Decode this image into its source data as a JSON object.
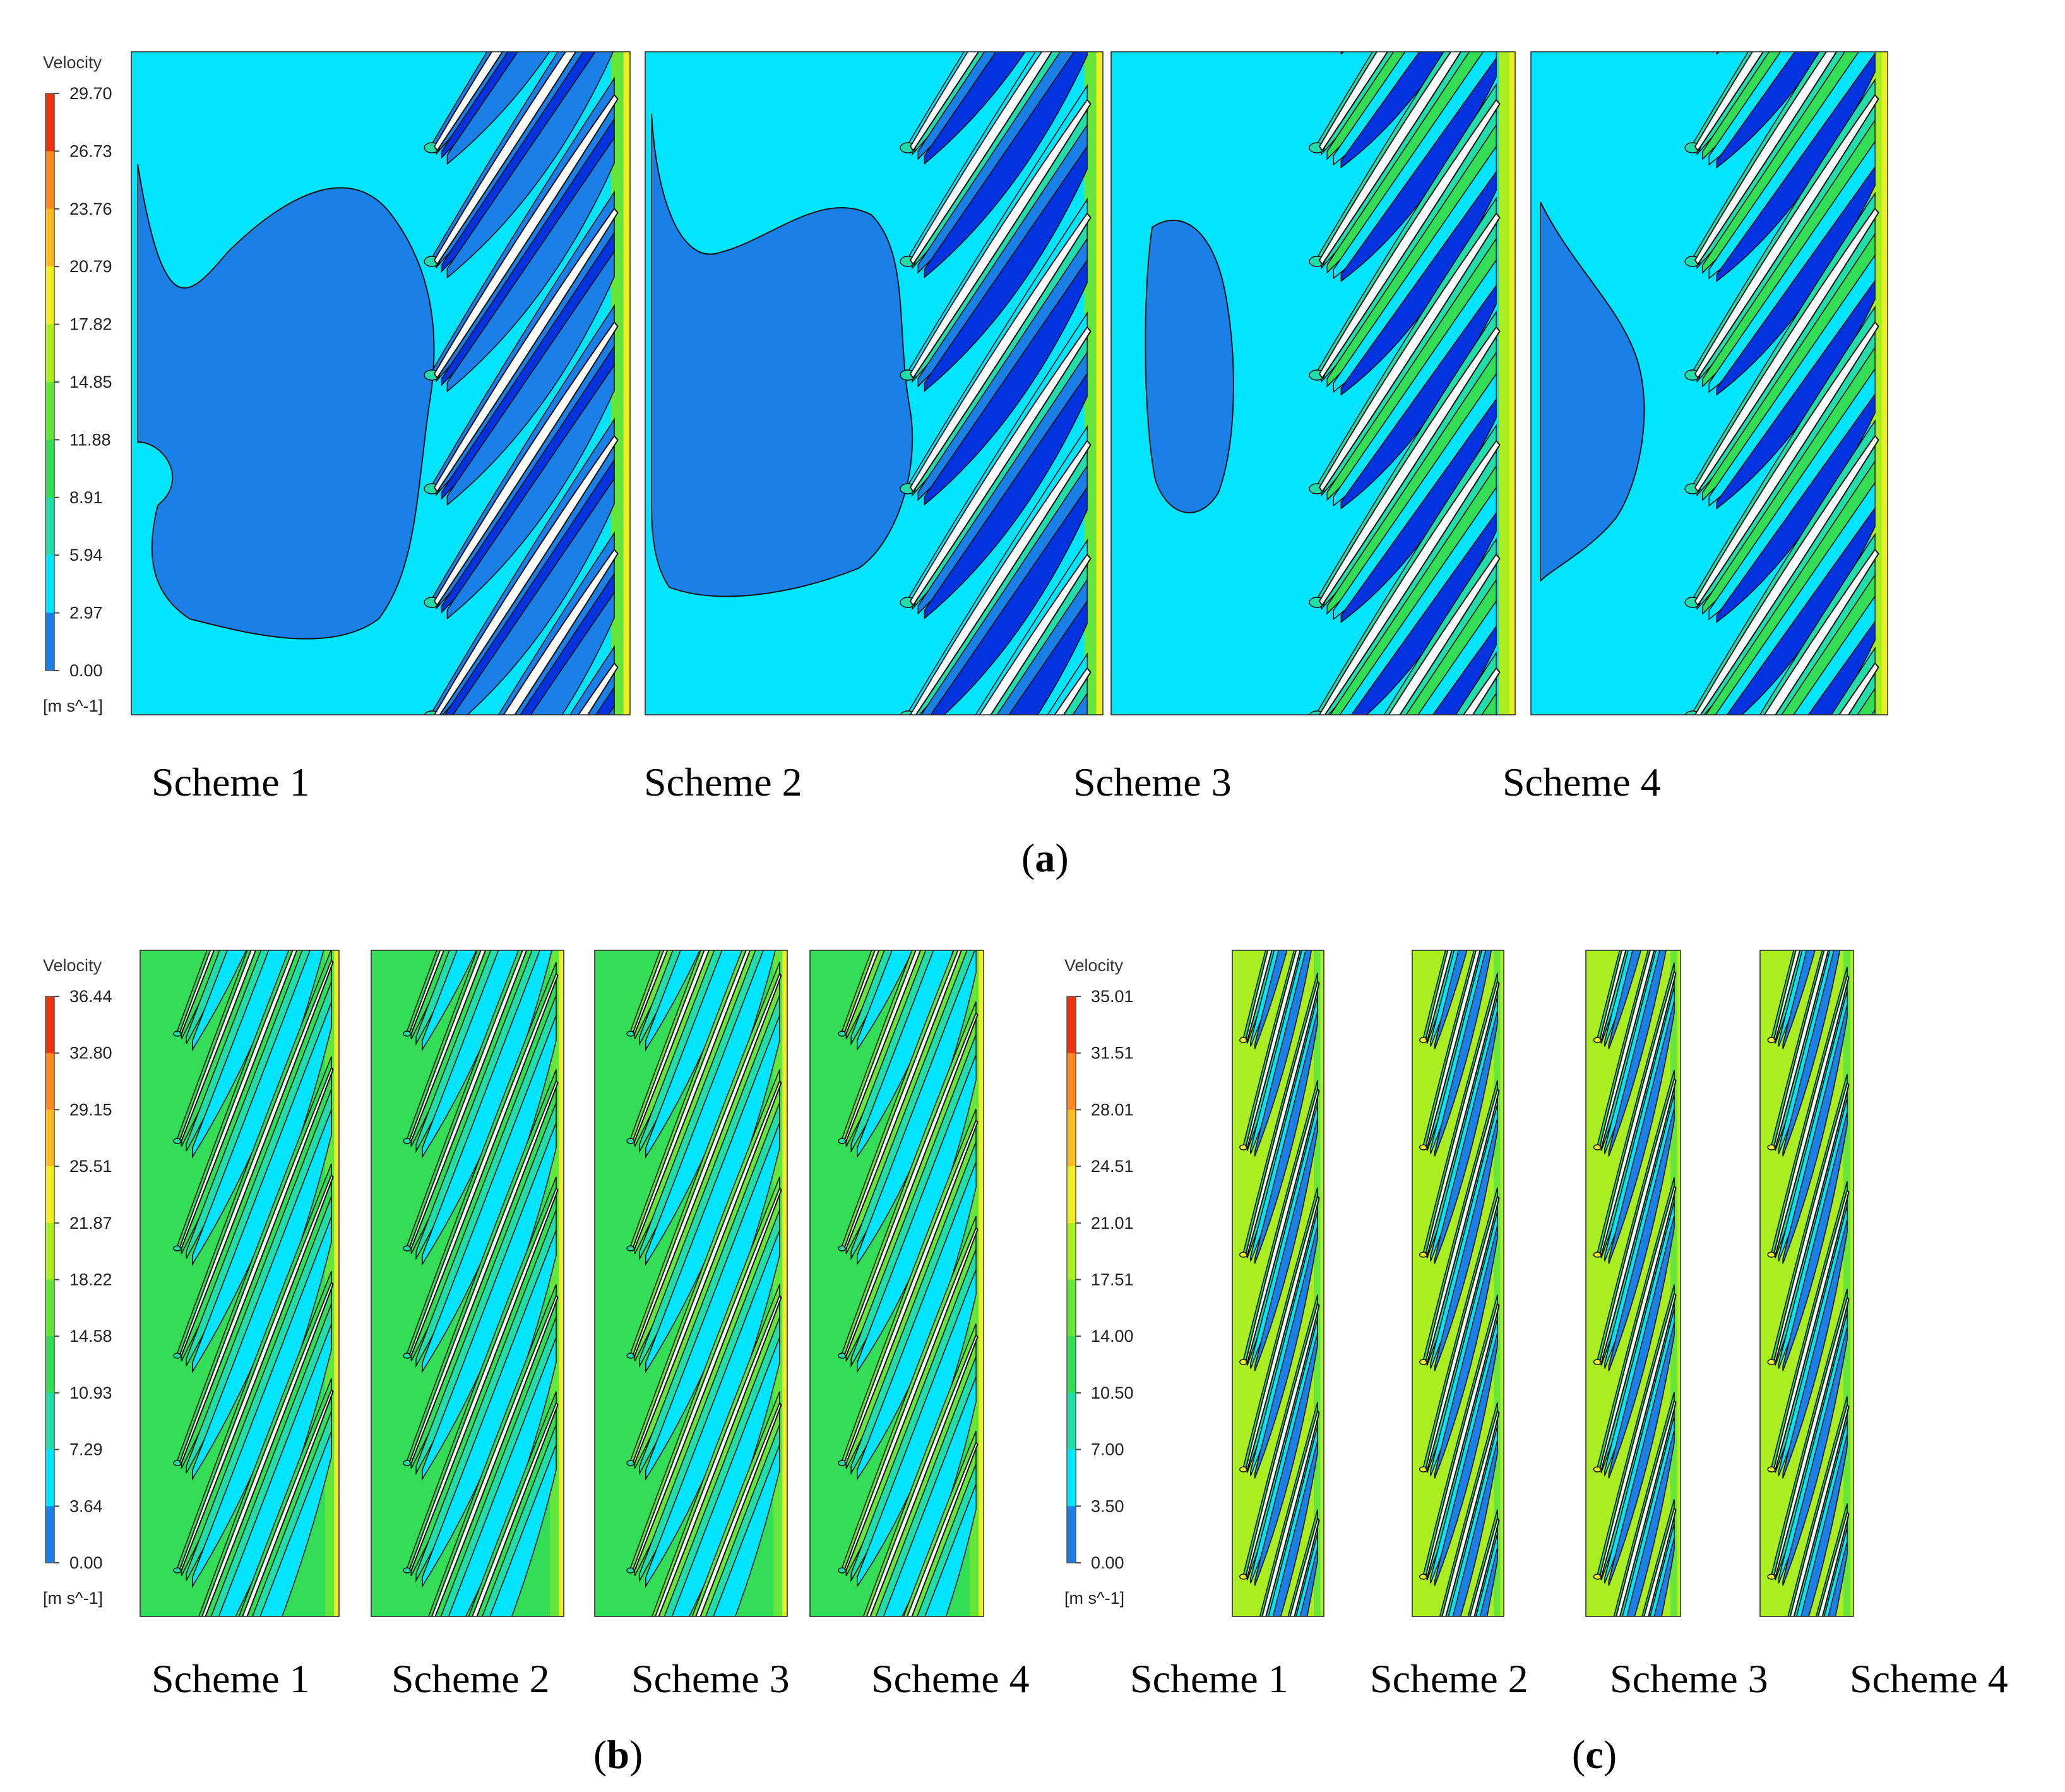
{
  "figure": {
    "panels": [
      {
        "id": "a",
        "label": "a",
        "legend": {
          "title": "Velocity",
          "unit": "[m s^-1]",
          "ticks": [
            "29.70",
            "26.73",
            "23.76",
            "20.79",
            "17.82",
            "14.85",
            "11.88",
            "8.91",
            "5.94",
            "2.97",
            "0.00"
          ],
          "min": 0.0,
          "max": 29.7
        },
        "schemes": [
          "Scheme 1",
          "Scheme 2",
          "Scheme 3",
          "Scheme 4"
        ]
      },
      {
        "id": "b",
        "label": "b",
        "legend": {
          "title": "Velocity",
          "unit": "[m s^-1]",
          "ticks": [
            "36.44",
            "32.80",
            "29.15",
            "25.51",
            "21.87",
            "18.22",
            "14.58",
            "10.93",
            "7.29",
            "3.64",
            "0.00"
          ],
          "min": 0.0,
          "max": 36.44
        },
        "schemes": [
          "Scheme 1",
          "Scheme 2",
          "Scheme 3",
          "Scheme 4"
        ]
      },
      {
        "id": "c",
        "label": "c",
        "legend": {
          "title": "Velocity",
          "unit": "[m s^-1]",
          "ticks": [
            "35.01",
            "31.51",
            "28.01",
            "24.51",
            "21.01",
            "17.51",
            "14.00",
            "10.50",
            "7.00",
            "3.50",
            "0.00"
          ],
          "min": 0.0,
          "max": 35.01
        },
        "schemes": [
          "Scheme 1",
          "Scheme 2",
          "Scheme 3",
          "Scheme 4"
        ]
      }
    ],
    "colors": {
      "colormap": [
        "#0033dd",
        "#1a7fe6",
        "#00e5ff",
        "#22ddaa",
        "#33dd55",
        "#66e63a",
        "#aaee22",
        "#eeee22",
        "#ffbb22",
        "#ff8822",
        "#ee3311"
      ],
      "blade_fill": "#ffffff",
      "contour_line": "#111111"
    }
  }
}
